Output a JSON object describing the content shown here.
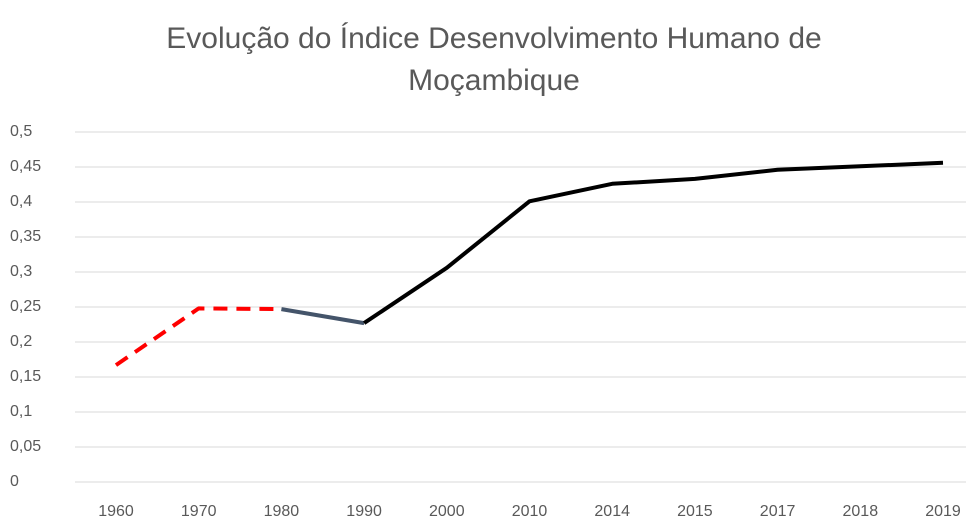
{
  "chart_data": {
    "type": "line",
    "title": [
      "Evolução do Índice Desenvolvimento Humano de",
      "Moçambique"
    ],
    "categories": [
      "1960",
      "1970",
      "1980",
      "1990",
      "2000",
      "2010",
      "2014",
      "2015",
      "2017",
      "2018",
      "2019"
    ],
    "series": [
      {
        "color": "#ff0000",
        "dashed": true,
        "values": [
          0.167,
          0.248,
          0.247,
          null,
          null,
          null,
          null,
          null,
          null,
          null,
          null
        ]
      },
      {
        "color": "#44546a",
        "dashed": false,
        "values": [
          null,
          null,
          0.247,
          0.227,
          null,
          null,
          null,
          null,
          null,
          null,
          null
        ]
      },
      {
        "color": "#000000",
        "dashed": false,
        "values": [
          null,
          null,
          null,
          0.227,
          0.306,
          0.401,
          0.426,
          0.433,
          0.446,
          0.451,
          0.456
        ]
      }
    ],
    "ylim": [
      0,
      0.5
    ],
    "yticks": [
      0,
      {
        "value": 0.05,
        "label": "0,05"
      },
      {
        "value": 0.1,
        "label": "0,1"
      },
      {
        "value": 0.15,
        "label": "0,15"
      },
      {
        "value": 0.2,
        "label": "0,2"
      },
      {
        "value": 0.25,
        "label": "0,25"
      },
      {
        "value": 0.3,
        "label": "0,3"
      },
      {
        "value": 0.35,
        "label": "0,35"
      },
      {
        "value": 0.4,
        "label": "0,4"
      },
      {
        "value": 0.45,
        "label": "0,45"
      },
      {
        "value": 0.5,
        "label": "0,5"
      }
    ],
    "grid": true
  }
}
